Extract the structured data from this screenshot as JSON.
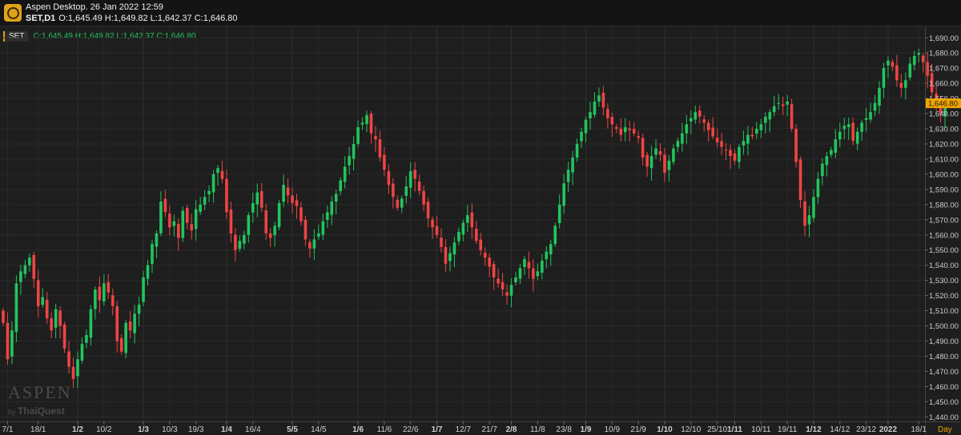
{
  "window": {
    "title": "Aspen Desktop. 26 Jan 2022 12:59",
    "symbol_timeframe": "SET,D1",
    "ohlc": "O:1,645.49 H:1,649.82 L:1,642.37 C:1,646.80"
  },
  "legend": {
    "symbol": "SET",
    "ohlc": "O:1,645.49 H:1,649.82 L:1,642.37 C:1,646.80"
  },
  "watermark": {
    "brand": "ASPEN",
    "by": "by",
    "company": "ThaiQuest"
  },
  "colors": {
    "up": "#22c55e",
    "down": "#ef4444",
    "background": "#1e1e1e",
    "price_label": "#f0a500"
  },
  "icons": {
    "app_logo": "aspen-logo-icon"
  },
  "chart_data": {
    "type": "candlestick",
    "last_price": 1646.8,
    "last_price_label": "1,646.80",
    "time_unit_label": "Day",
    "ylim": [
      1437,
      1697
    ],
    "y_ticks": [
      {
        "value": 1690,
        "label": "1,690.00"
      },
      {
        "value": 1680,
        "label": "1,680.00"
      },
      {
        "value": 1670,
        "label": "1,670.00"
      },
      {
        "value": 1660,
        "label": "1,660.00"
      },
      {
        "value": 1650,
        "label": "1,650.00"
      },
      {
        "value": 1640,
        "label": "1,640.00"
      },
      {
        "value": 1630,
        "label": "1,630.00"
      },
      {
        "value": 1620,
        "label": "1,620.00"
      },
      {
        "value": 1610,
        "label": "1,610.00"
      },
      {
        "value": 1600,
        "label": "1,600.00"
      },
      {
        "value": 1590,
        "label": "1,590.00"
      },
      {
        "value": 1580,
        "label": "1,580.00"
      },
      {
        "value": 1570,
        "label": "1,570.00"
      },
      {
        "value": 1560,
        "label": "1,560.00"
      },
      {
        "value": 1550,
        "label": "1,550.00"
      },
      {
        "value": 1540,
        "label": "1,540.00"
      },
      {
        "value": 1530,
        "label": "1,530.00"
      },
      {
        "value": 1520,
        "label": "1,520.00"
      },
      {
        "value": 1510,
        "label": "1,510.00"
      },
      {
        "value": 1500,
        "label": "1,500.00"
      },
      {
        "value": 1490,
        "label": "1,490.00"
      },
      {
        "value": 1480,
        "label": "1,480.00"
      },
      {
        "value": 1470,
        "label": "1,470.00"
      },
      {
        "value": 1460,
        "label": "1,460.00"
      },
      {
        "value": 1450,
        "label": "1,450.00"
      },
      {
        "value": 1440,
        "label": "1,440.00"
      }
    ],
    "x_ticks": [
      {
        "label": "7/1",
        "bold": false,
        "bar": 1
      },
      {
        "label": "18/1",
        "bold": false,
        "bar": 8
      },
      {
        "label": "1/2",
        "bold": true,
        "bar": 17
      },
      {
        "label": "10/2",
        "bold": false,
        "bar": 23
      },
      {
        "label": "1/3",
        "bold": true,
        "bar": 32
      },
      {
        "label": "10/3",
        "bold": false,
        "bar": 38
      },
      {
        "label": "19/3",
        "bold": false,
        "bar": 44
      },
      {
        "label": "1/4",
        "bold": true,
        "bar": 51
      },
      {
        "label": "16/4",
        "bold": false,
        "bar": 57
      },
      {
        "label": "5/5",
        "bold": true,
        "bar": 66
      },
      {
        "label": "14/5",
        "bold": false,
        "bar": 72
      },
      {
        "label": "1/6",
        "bold": true,
        "bar": 81
      },
      {
        "label": "11/6",
        "bold": false,
        "bar": 87
      },
      {
        "label": "22/6",
        "bold": false,
        "bar": 93
      },
      {
        "label": "1/7",
        "bold": true,
        "bar": 99
      },
      {
        "label": "12/7",
        "bold": false,
        "bar": 105
      },
      {
        "label": "21/7",
        "bold": false,
        "bar": 111
      },
      {
        "label": "2/8",
        "bold": true,
        "bar": 116
      },
      {
        "label": "11/8",
        "bold": false,
        "bar": 122
      },
      {
        "label": "23/8",
        "bold": false,
        "bar": 128
      },
      {
        "label": "1/9",
        "bold": true,
        "bar": 133
      },
      {
        "label": "10/9",
        "bold": false,
        "bar": 139
      },
      {
        "label": "21/9",
        "bold": false,
        "bar": 145
      },
      {
        "label": "1/10",
        "bold": true,
        "bar": 151
      },
      {
        "label": "12/10",
        "bold": false,
        "bar": 157
      },
      {
        "label": "25/10",
        "bold": false,
        "bar": 163
      },
      {
        "label": "1/11",
        "bold": true,
        "bar": 167
      },
      {
        "label": "10/11",
        "bold": false,
        "bar": 173
      },
      {
        "label": "19/11",
        "bold": false,
        "bar": 179
      },
      {
        "label": "1/12",
        "bold": true,
        "bar": 185
      },
      {
        "label": "14/12",
        "bold": false,
        "bar": 191
      },
      {
        "label": "23/12",
        "bold": false,
        "bar": 197
      },
      {
        "label": "2022",
        "bold": true,
        "bar": 202
      },
      {
        "label": "18/1",
        "bold": false,
        "bar": 209
      }
    ],
    "closes": [
      1502,
      1478,
      1497,
      1528,
      1536,
      1540,
      1545,
      1531,
      1513,
      1519,
      1505,
      1497,
      1511,
      1500,
      1485,
      1473,
      1465,
      1478,
      1488,
      1494,
      1511,
      1524,
      1517,
      1528,
      1522,
      1513,
      1490,
      1483,
      1502,
      1497,
      1508,
      1514,
      1532,
      1540,
      1554,
      1561,
      1582,
      1575,
      1565,
      1569,
      1558,
      1576,
      1568,
      1563,
      1577,
      1580,
      1585,
      1589,
      1600,
      1604,
      1597,
      1575,
      1561,
      1550,
      1556,
      1560,
      1573,
      1581,
      1588,
      1578,
      1561,
      1558,
      1566,
      1581,
      1593,
      1586,
      1581,
      1579,
      1569,
      1557,
      1551,
      1557,
      1561,
      1569,
      1575,
      1582,
      1587,
      1596,
      1605,
      1612,
      1620,
      1631,
      1634,
      1639,
      1627,
      1623,
      1611,
      1603,
      1593,
      1585,
      1578,
      1584,
      1592,
      1602,
      1597,
      1589,
      1580,
      1571,
      1565,
      1560,
      1552,
      1541,
      1548,
      1555,
      1562,
      1568,
      1573,
      1565,
      1556,
      1550,
      1545,
      1539,
      1532,
      1528,
      1524,
      1520,
      1527,
      1532,
      1538,
      1544,
      1538,
      1531,
      1536,
      1543,
      1549,
      1554,
      1566,
      1580,
      1594,
      1603,
      1611,
      1620,
      1628,
      1636,
      1641,
      1648,
      1652,
      1644,
      1637,
      1633,
      1630,
      1626,
      1631,
      1629,
      1627,
      1624,
      1611,
      1605,
      1612,
      1617,
      1613,
      1601,
      1609,
      1617,
      1622,
      1627,
      1633,
      1637,
      1641,
      1638,
      1634,
      1629,
      1625,
      1621,
      1618,
      1616,
      1612,
      1609,
      1618,
      1622,
      1626,
      1625,
      1630,
      1633,
      1638,
      1641,
      1645,
      1647,
      1645,
      1648,
      1630,
      1608,
      1583,
      1566,
      1573,
      1585,
      1597,
      1607,
      1612,
      1616,
      1623,
      1628,
      1632,
      1633,
      1622,
      1628,
      1634,
      1637,
      1641,
      1647,
      1657,
      1670,
      1675,
      1671,
      1662,
      1657,
      1662,
      1673,
      1678,
      1680,
      1674,
      1665,
      1654,
      1646,
      1640,
      1646.8
    ]
  }
}
